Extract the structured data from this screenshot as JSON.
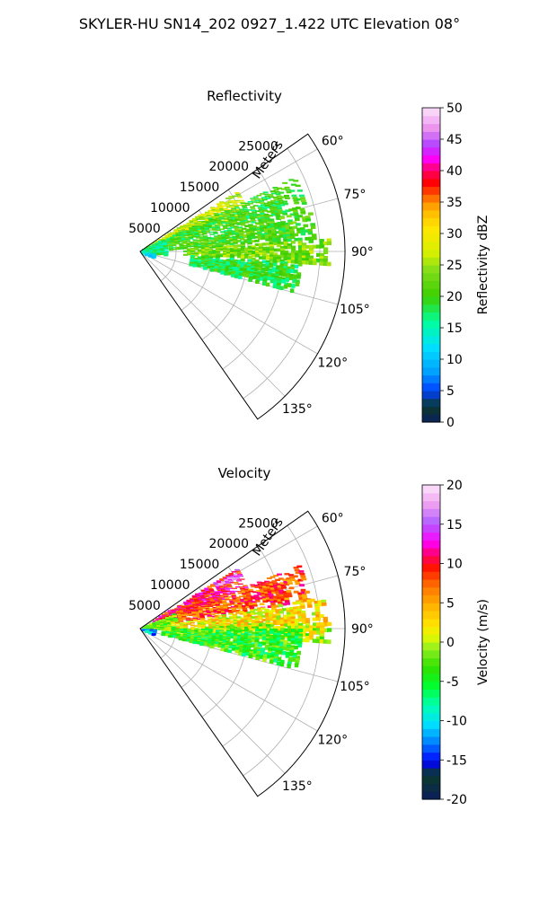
{
  "figure_title": "SKYLER-HU  SN14_202  0927_1.422 UTC Elevation 08°",
  "chart_data": [
    {
      "type": "heatmap",
      "projection": "polar-sector (PPI)",
      "title": "Reflectivity",
      "range_axis_label": "Meters",
      "range_ticks": [
        5000,
        10000,
        15000,
        20000,
        25000
      ],
      "range_lim": [
        0,
        28500
      ],
      "azimuth_ticks": [
        "60°",
        "75°",
        "90°",
        "105°",
        "120°",
        "135°"
      ],
      "azimuth_tick_values": [
        60,
        75,
        90,
        105,
        120,
        135
      ],
      "azimuth_lim": [
        55,
        145
      ],
      "grid": true,
      "colorbar": {
        "label": "Reflectivity dBZ",
        "ticks": [
          0,
          5,
          10,
          15,
          20,
          25,
          30,
          35,
          40,
          45,
          50
        ],
        "range": [
          0,
          50
        ]
      },
      "echo_regions": [
        {
          "az": [
            58,
            72
          ],
          "range": [
            1000,
            16000
          ],
          "value": 27
        },
        {
          "az": [
            64,
            76
          ],
          "range": [
            3000,
            24000
          ],
          "value": 20
        },
        {
          "az": [
            76,
            86
          ],
          "range": [
            4000,
            24500
          ],
          "value": 21
        },
        {
          "az": [
            86,
            94
          ],
          "range": [
            6000,
            26500
          ],
          "value": 23
        },
        {
          "az": [
            94,
            104
          ],
          "range": [
            7000,
            22500
          ],
          "value": 19
        },
        {
          "az": [
            62,
            98
          ],
          "range": [
            300,
            3500
          ],
          "value": 17
        },
        {
          "az": [
            100,
            115
          ],
          "range": [
            200,
            2000
          ],
          "value": 12
        }
      ]
    },
    {
      "type": "heatmap",
      "projection": "polar-sector (PPI)",
      "title": "Velocity",
      "range_axis_label": "Meters",
      "range_ticks": [
        5000,
        10000,
        15000,
        20000,
        25000
      ],
      "range_lim": [
        0,
        28500
      ],
      "azimuth_ticks": [
        "60°",
        "75°",
        "90°",
        "105°",
        "120°",
        "135°"
      ],
      "azimuth_tick_values": [
        60,
        75,
        90,
        105,
        120,
        135
      ],
      "azimuth_lim": [
        55,
        145
      ],
      "grid": true,
      "colorbar": {
        "label": "Velocity (m/s)",
        "ticks": [
          -20,
          -15,
          -10,
          -5,
          0,
          5,
          10,
          15,
          20
        ],
        "range": [
          -20,
          20
        ]
      },
      "echo_regions": [
        {
          "az": [
            58,
            70
          ],
          "range": [
            2000,
            16000
          ],
          "value": 10
        },
        {
          "az": [
            68,
            80
          ],
          "range": [
            4000,
            24000
          ],
          "value": 8
        },
        {
          "az": [
            80,
            90
          ],
          "range": [
            5000,
            26000
          ],
          "value": 2
        },
        {
          "az": [
            88,
            94
          ],
          "range": [
            9000,
            26500
          ],
          "value": 0
        },
        {
          "az": [
            90,
            104
          ],
          "range": [
            3000,
            22500
          ],
          "value": -4
        },
        {
          "az": [
            66,
            92
          ],
          "range": [
            300,
            5000
          ],
          "value": -2
        },
        {
          "az": [
            92,
            112
          ],
          "range": [
            200,
            2000
          ],
          "value": -12
        },
        {
          "az": [
            58,
            62
          ],
          "range": [
            12000,
            16000
          ],
          "value": 15
        }
      ]
    }
  ]
}
